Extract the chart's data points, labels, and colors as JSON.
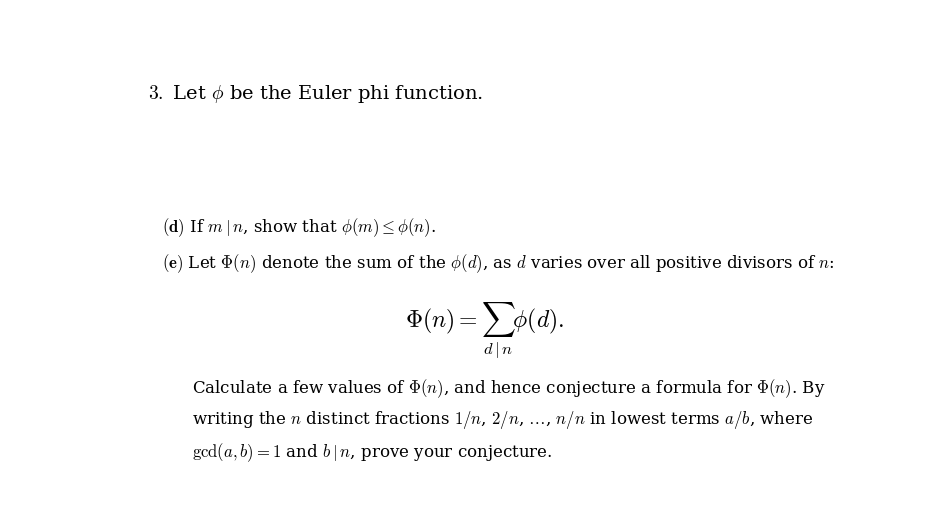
{
  "background_color": "#ffffff",
  "figsize": [
    9.46,
    5.23
  ],
  "dpi": 100,
  "font_size_title": 14,
  "font_size_body": 12,
  "font_size_formula": 17
}
